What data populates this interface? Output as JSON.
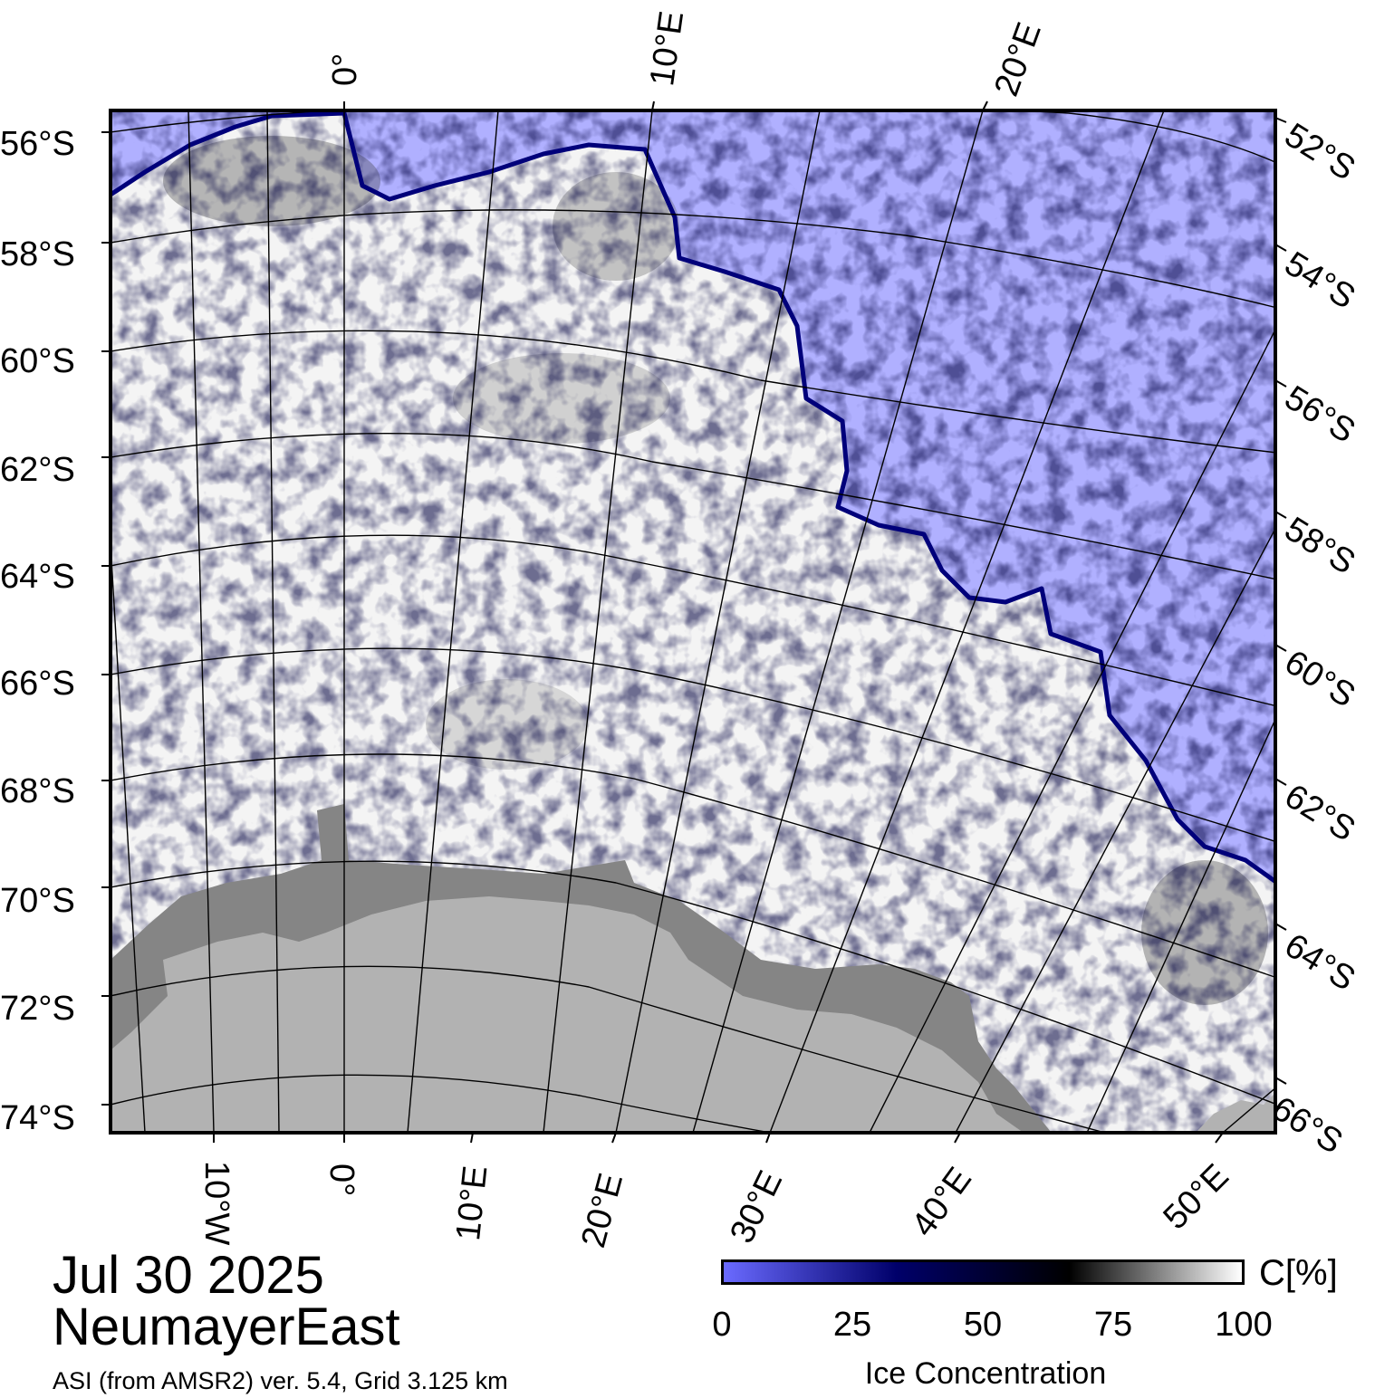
{
  "map": {
    "date": "Jul 30 2025",
    "region": "NeumayerEast",
    "source": "ASI (from AMSR2) ver. 5.4,  Grid 3.125 km",
    "left_lat_labels": [
      "56°S",
      "58°S",
      "60°S",
      "62°S",
      "64°S",
      "66°S",
      "68°S",
      "70°S",
      "72°S",
      "74°S"
    ],
    "right_lat_labels": [
      "52°S",
      "54°S",
      "56°S",
      "58°S",
      "60°S",
      "62°S",
      "64°S",
      "66°S"
    ],
    "top_lon_labels": [
      "0°",
      "10°E",
      "20°E"
    ],
    "bottom_lon_labels": [
      "10°W",
      "0°",
      "10°E",
      "20°E",
      "30°E",
      "40°E",
      "50°E"
    ],
    "colors": {
      "open_water": "#b0b0ff",
      "ice_high": "#ffffff",
      "ice_low": "#000000",
      "ice_edge": "#00007a",
      "ice_shelf": "#858585",
      "land": "#b2b2b2"
    }
  },
  "colorbar": {
    "title": "Ice Concentration",
    "unit": "C[%]",
    "ticks": [
      "0",
      "25",
      "50",
      "75",
      "100"
    ],
    "range": [
      0,
      100
    ],
    "colors": [
      "#6a6aff",
      "#00006a",
      "#000000",
      "#ffffff"
    ]
  }
}
